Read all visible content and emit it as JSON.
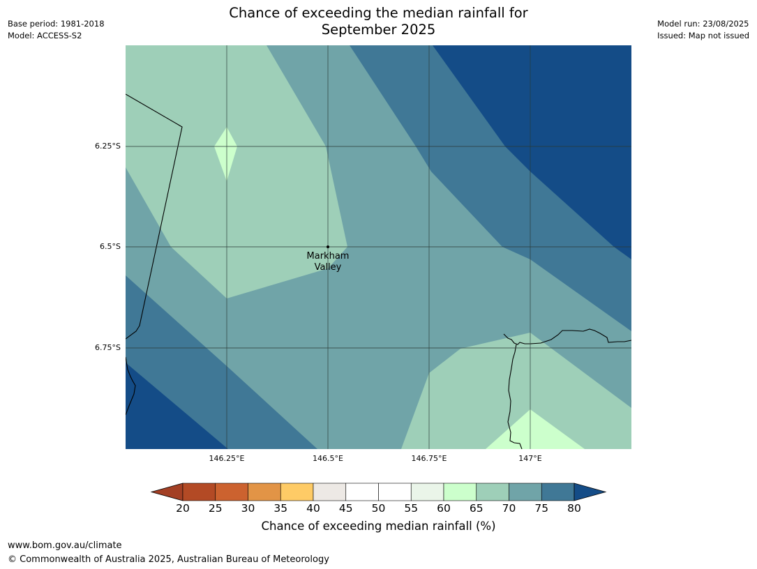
{
  "title": "Chance of exceeding the median rainfall for\nSeptember 2025",
  "meta_left": {
    "base_period": "Base period: 1981-2018",
    "model": "Model: ACCESS-S2"
  },
  "meta_right": {
    "model_run": "Model run: 23/08/2025",
    "issued": "Issued: Map not issued"
  },
  "map": {
    "lat_ticks": [
      "6.25°S",
      "6.5°S",
      "6.75°S"
    ],
    "lon_ticks": [
      "146.25°E",
      "146.5°E",
      "146.75°E",
      "147°E"
    ],
    "place": "Markham\nValley",
    "colors": {
      "c55": "#eaf5e9",
      "c60": "#ccffcc",
      "c65": "#9ecfb8",
      "c70": "#70a4a8",
      "c75": "#407896",
      "c80": "#144c87"
    }
  },
  "colorbar": {
    "ticks": [
      "20",
      "25",
      "30",
      "35",
      "40",
      "45",
      "50",
      "55",
      "60",
      "65",
      "70",
      "75",
      "80"
    ],
    "colors": [
      "#a33f24",
      "#b34a25",
      "#cc622f",
      "#e29446",
      "#fecb66",
      "#ede9e5",
      "#ffffff",
      "#ffffff",
      "#eaf5e9",
      "#ccffcc",
      "#9ecfb8",
      "#70a4a8",
      "#407896",
      "#144c87"
    ],
    "label": "Chance of exceeding median rainfall (%)"
  },
  "footer": {
    "url": "www.bom.gov.au/climate",
    "copyright": "© Commonwealth of Australia 2025, Australian Bureau of Meteorology"
  }
}
